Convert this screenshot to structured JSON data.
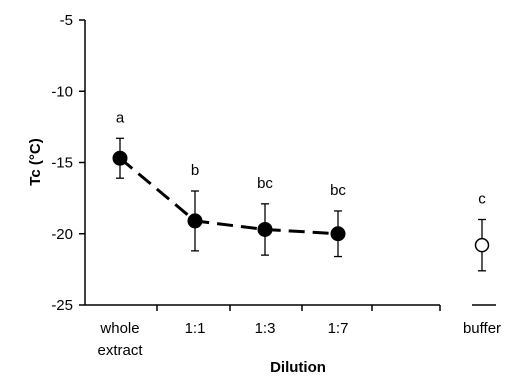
{
  "chart_data": {
    "type": "scatter",
    "title": "",
    "xlabel": "Dilution",
    "ylabel": "Tc (°C)",
    "ylim": [
      -25,
      -5
    ],
    "yticks": [
      "-5",
      "-10",
      "-15",
      "-20",
      "-25"
    ],
    "ytick_values": [
      -5,
      -10,
      -15,
      -20,
      -25
    ],
    "grid": false,
    "legend": "none",
    "categories": [
      {
        "lines": [
          "whole",
          "extract"
        ]
      },
      {
        "lines": [
          "1:1"
        ]
      },
      {
        "lines": [
          "1:3"
        ]
      },
      {
        "lines": [
          "1:7"
        ]
      },
      {
        "lines": [
          "buffer"
        ]
      }
    ],
    "series": [
      {
        "style": "dashed-line-filled-markers",
        "points": [
          {
            "category": 0,
            "y": -14.7,
            "err_low": -16.1,
            "err_high": -13.3,
            "label": "a"
          },
          {
            "category": 1,
            "y": -19.1,
            "err_low": -21.2,
            "err_high": -17.0,
            "label": "b"
          },
          {
            "category": 2,
            "y": -19.7,
            "err_low": -21.5,
            "err_high": -17.9,
            "label": "bc"
          },
          {
            "category": 3,
            "y": -20.0,
            "err_low": -21.6,
            "err_high": -18.4,
            "label": "bc"
          }
        ]
      },
      {
        "style": "open-marker",
        "points": [
          {
            "category": 4,
            "y": -20.8,
            "err_low": -22.6,
            "err_high": -19.0,
            "label": "c"
          }
        ]
      }
    ],
    "colors": {
      "line": "#000000",
      "marker_fill": "#000000",
      "open_marker_fill": "#ffffff"
    }
  }
}
